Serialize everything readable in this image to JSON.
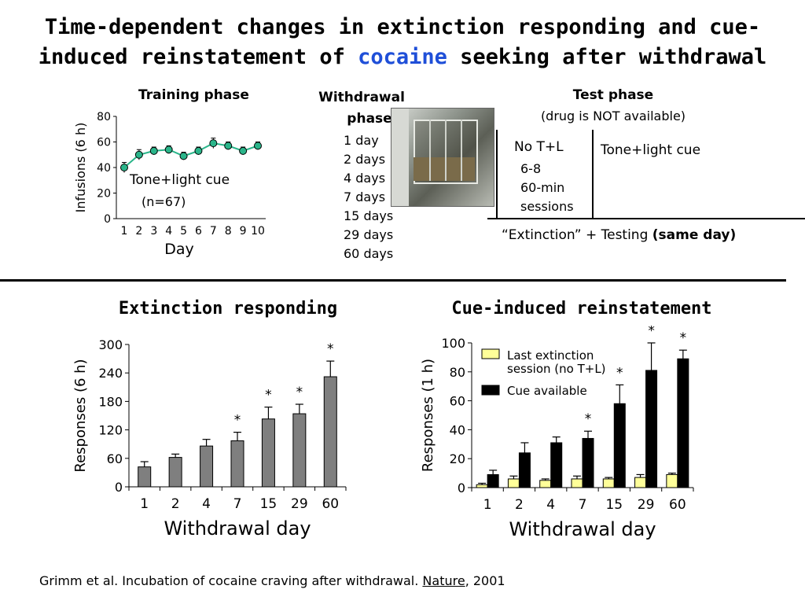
{
  "slide": {
    "title_pre": "Time-dependent changes in extinction responding and cue-induced reinstatement of ",
    "title_highlight": "cocaine",
    "title_post": " seeking after withdrawal",
    "highlight_color": "#1f4fd8",
    "citation_pre": "Grimm et al. Incubation of cocaine craving after withdrawal.  ",
    "citation_journal": "Nature",
    "citation_post": ", 2001"
  },
  "training": {
    "heading": "Training phase",
    "annotation": "Tone+light cue",
    "n_label": "(n=67)"
  },
  "withdrawal": {
    "heading_line1": "Withdrawal",
    "heading_line2": "phase",
    "durations": [
      "1 day",
      "2 days",
      "4 days",
      "7 days",
      "15 days",
      "29 days",
      "60 days"
    ]
  },
  "test": {
    "heading": "Test phase",
    "subheading": "(drug is NOT available)",
    "no_cue_label": "No T+L",
    "sessions_line1": "6-8",
    "sessions_line2": "60-min",
    "sessions_line3": "sessions",
    "cue_label": "Tone+light cue",
    "footer_pre": "“Extinction” + Testing ",
    "footer_bold": "(same day)"
  },
  "chart_data": [
    {
      "id": "training",
      "type": "line",
      "title": "",
      "xlabel": "Day",
      "ylabel": "Infusions (6 h)",
      "x": [
        1,
        2,
        3,
        4,
        5,
        6,
        7,
        8,
        9,
        10
      ],
      "x_tick_labels": [
        "1",
        "2",
        "3",
        "4",
        "5",
        "6",
        "7",
        "8",
        "9",
        "10"
      ],
      "series": [
        {
          "values": [
            40,
            50,
            53,
            54,
            49,
            53,
            59,
            57,
            53,
            57
          ],
          "errors": [
            4,
            4,
            3,
            3,
            3,
            3,
            4,
            3,
            3,
            3
          ],
          "color": "#2ab58a"
        }
      ],
      "ylim": [
        0,
        80
      ],
      "y_ticks": [
        0,
        20,
        40,
        60,
        80
      ],
      "grid": false
    },
    {
      "id": "extinction",
      "type": "bar",
      "title": "Extinction responding",
      "xlabel": "Withdrawal day",
      "ylabel": "Responses (6 h)",
      "categories": [
        "1",
        "2",
        "4",
        "7",
        "15",
        "29",
        "60"
      ],
      "series": [
        {
          "values": [
            42,
            62,
            86,
            97,
            143,
            154,
            232
          ],
          "errors": [
            11,
            7,
            14,
            18,
            25,
            20,
            33
          ],
          "significance": [
            "",
            "",
            "",
            "*",
            "*",
            "*",
            "*"
          ],
          "color": "#7f7f7f"
        }
      ],
      "ylim": [
        0,
        300
      ],
      "y_ticks": [
        0,
        60,
        120,
        180,
        240,
        300
      ],
      "grid": false
    },
    {
      "id": "reinstatement",
      "type": "bar",
      "title": "Cue-induced reinstatement",
      "xlabel": "Withdrawal day",
      "ylabel": "Responses (1 h)",
      "categories": [
        "1",
        "2",
        "4",
        "7",
        "15",
        "29",
        "60"
      ],
      "series": [
        {
          "name": "Last extinction session (no T+L)",
          "legend_line1": "Last extinction",
          "legend_line2": "session (no T+L)",
          "values": [
            2,
            6,
            5,
            6,
            6,
            7,
            9
          ],
          "errors": [
            1,
            2,
            1,
            2,
            1,
            2,
            1
          ],
          "color": "#ffff99"
        },
        {
          "name": "Cue available",
          "values": [
            9,
            24,
            31,
            34,
            58,
            81,
            89
          ],
          "errors": [
            3,
            7,
            4,
            5,
            13,
            19,
            6
          ],
          "significance": [
            "",
            "",
            "",
            "*",
            "*",
            "*",
            "*"
          ],
          "color": "#000000"
        }
      ],
      "ylim": [
        0,
        100
      ],
      "y_ticks": [
        0,
        20,
        40,
        60,
        80,
        100
      ],
      "grid": false,
      "legend_position": "top-left"
    }
  ]
}
